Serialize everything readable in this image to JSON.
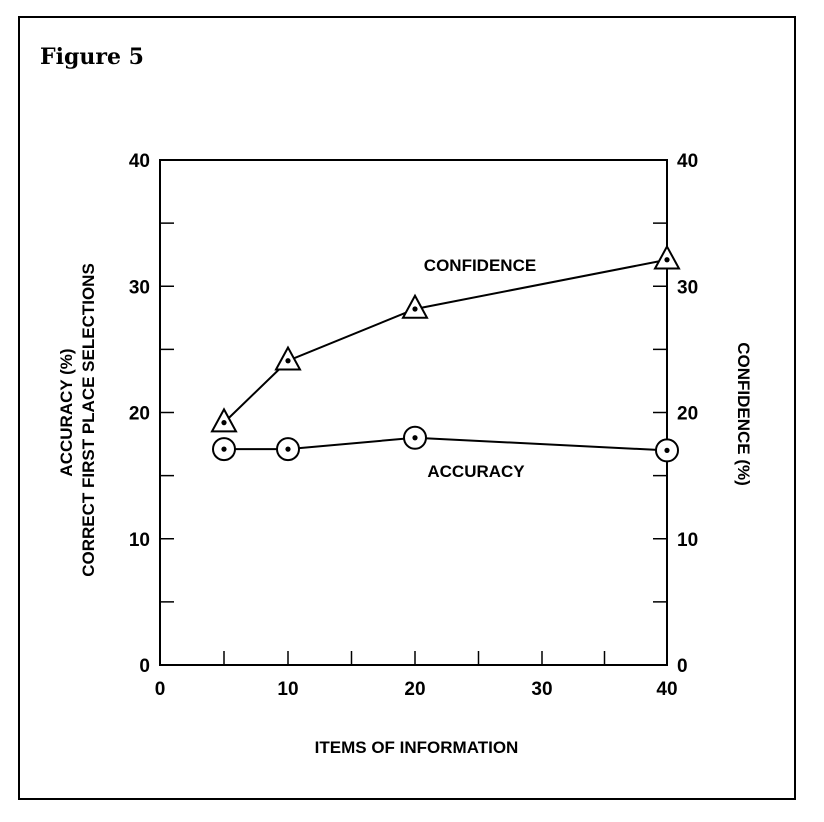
{
  "figure": {
    "title": "Figure 5"
  },
  "chart_data": {
    "type": "line",
    "xlabel": "ITEMS OF INFORMATION",
    "ylabel_left": [
      "ACCURACY (%)",
      "CORRECT FIRST PLACE SELECTIONS"
    ],
    "ylabel_right": "CONFIDENCE (%)",
    "x_tick_labels": [
      "0",
      "10",
      "20",
      "30",
      "40"
    ],
    "y_tick_labels": [
      "0",
      "10",
      "20",
      "30",
      "40"
    ],
    "x_scale_points": [
      0,
      10,
      20,
      30,
      40
    ],
    "xlim": [
      0,
      40
    ],
    "ylim": [
      0,
      40
    ],
    "grid": false,
    "series": [
      {
        "name": "CONFIDENCE",
        "marker": "triangle-dot",
        "x": [
          5,
          10,
          20,
          40
        ],
        "values": [
          19.2,
          24.1,
          28.2,
          32.1
        ]
      },
      {
        "name": "ACCURACY",
        "marker": "circle-dot",
        "x": [
          5,
          10,
          20,
          40
        ],
        "values": [
          17.1,
          17.1,
          18.0,
          17.0
        ]
      }
    ]
  }
}
